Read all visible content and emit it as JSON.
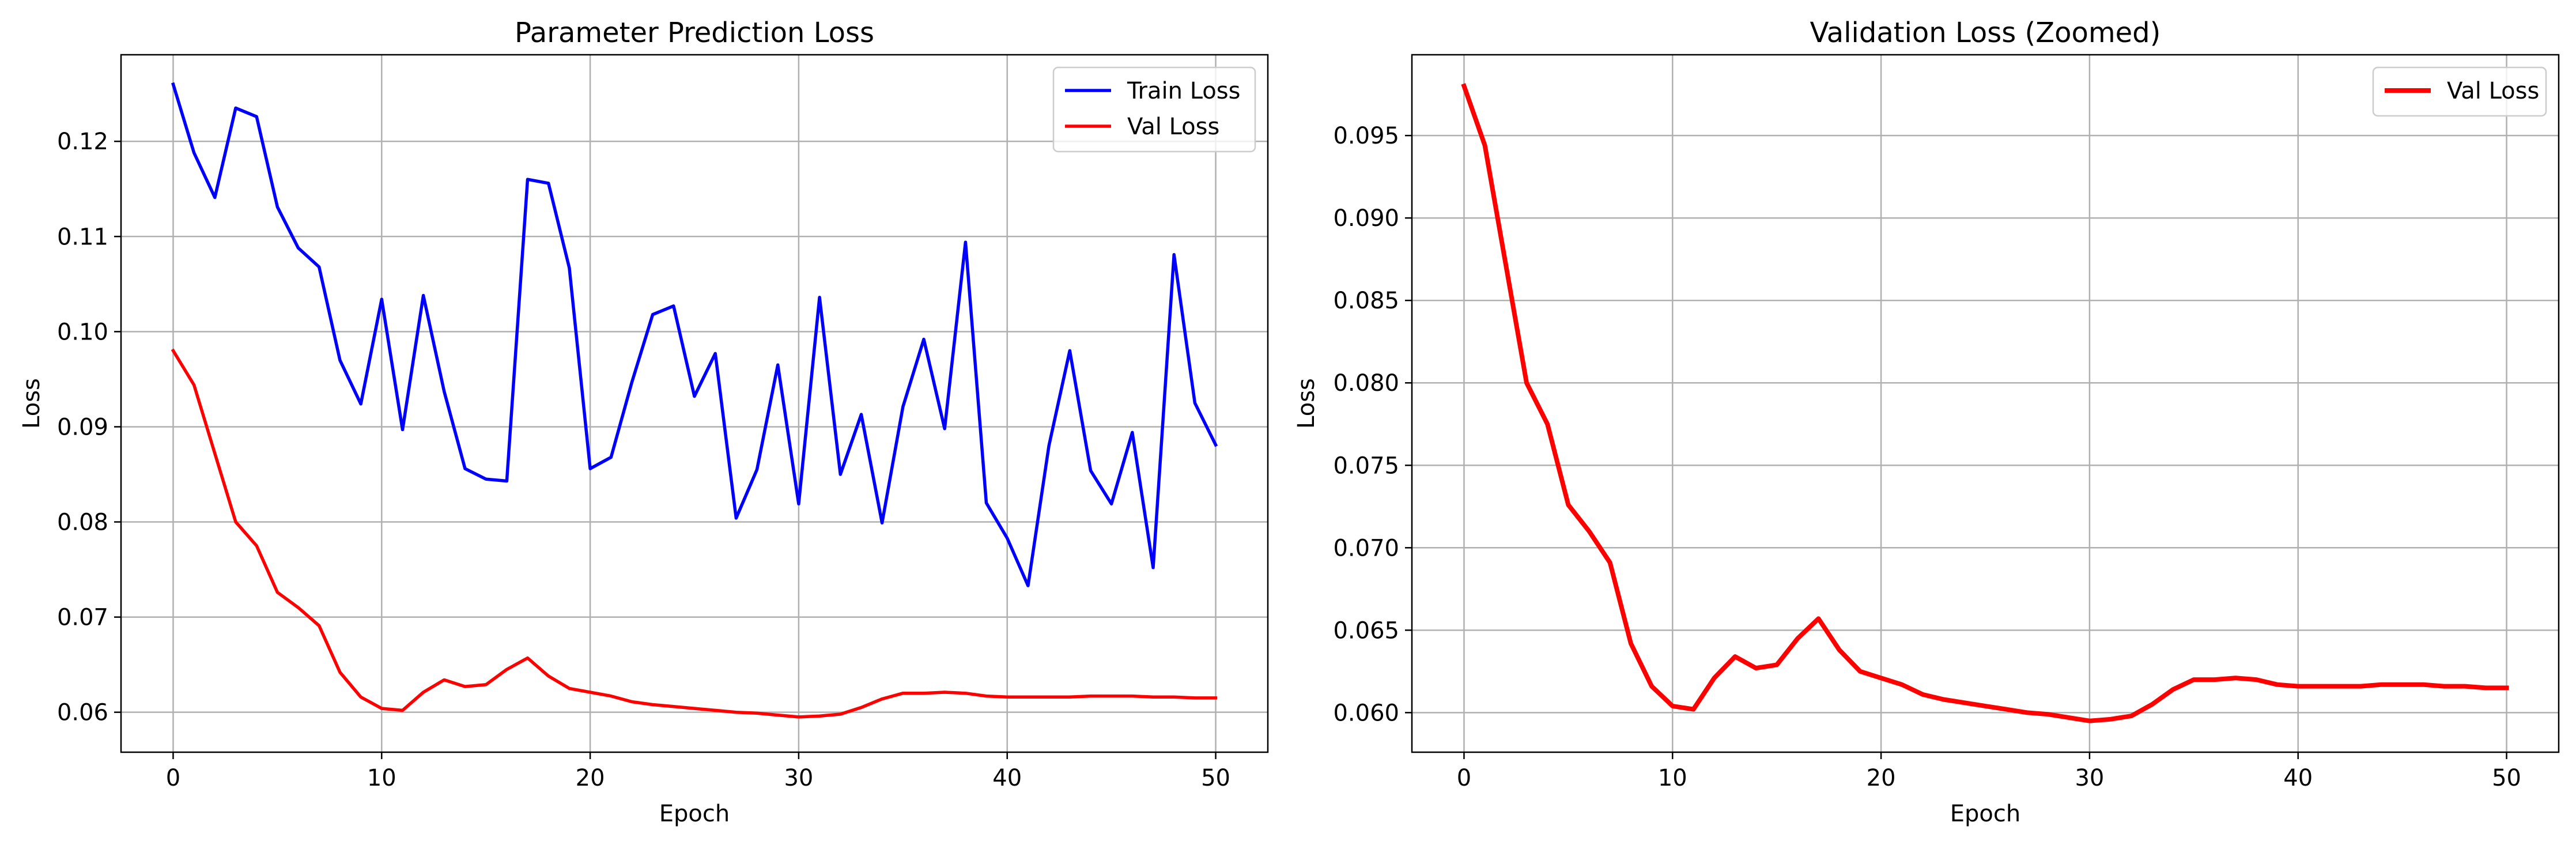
{
  "chart_data": [
    {
      "type": "line",
      "title": "Parameter Prediction Loss",
      "xlabel": "Epoch",
      "ylabel": "Loss",
      "xlim": [
        -2.5,
        52.5
      ],
      "ylim": [
        0.0558,
        0.1291
      ],
      "xticks": [
        0,
        10,
        20,
        30,
        40,
        50
      ],
      "xtick_labels": [
        "0",
        "10",
        "20",
        "30",
        "40",
        "50"
      ],
      "yticks": [
        0.06,
        0.07,
        0.08,
        0.09,
        0.1,
        0.11,
        0.12
      ],
      "ytick_labels": [
        "0.06",
        "0.07",
        "0.08",
        "0.09",
        "0.10",
        "0.11",
        "0.12"
      ],
      "grid": true,
      "legend_position": "top-right",
      "x": [
        0,
        1,
        2,
        3,
        4,
        5,
        6,
        7,
        8,
        9,
        10,
        11,
        12,
        13,
        14,
        15,
        16,
        17,
        18,
        19,
        20,
        21,
        22,
        23,
        24,
        25,
        26,
        27,
        28,
        29,
        30,
        31,
        32,
        33,
        34,
        35,
        36,
        37,
        38,
        39,
        40,
        41,
        42,
        43,
        44,
        45,
        46,
        47,
        48,
        49,
        50
      ],
      "series": [
        {
          "name": "Train Loss",
          "color": "#0000ff",
          "values": [
            0.126,
            0.1188,
            0.1141,
            0.1235,
            0.1226,
            0.1131,
            0.1088,
            0.1068,
            0.097,
            0.0924,
            0.1034,
            0.0897,
            0.1038,
            0.0937,
            0.0856,
            0.0845,
            0.0843,
            0.116,
            0.1156,
            0.1067,
            0.0856,
            0.0868,
            0.0947,
            0.1018,
            0.1027,
            0.0932,
            0.0977,
            0.0804,
            0.0855,
            0.0965,
            0.0819,
            0.1036,
            0.085,
            0.0913,
            0.0799,
            0.0921,
            0.0992,
            0.0898,
            0.1094,
            0.082,
            0.0783,
            0.0733,
            0.088,
            0.098,
            0.0854,
            0.0819,
            0.0894,
            0.0752,
            0.1081,
            0.0925,
            0.0881
          ]
        },
        {
          "name": "Val Loss",
          "color": "#ff0000",
          "values": [
            0.098,
            0.0944,
            0.0872,
            0.08,
            0.0775,
            0.0726,
            0.071,
            0.0691,
            0.0642,
            0.0616,
            0.0604,
            0.0602,
            0.0621,
            0.0634,
            0.0627,
            0.0629,
            0.0645,
            0.0657,
            0.0638,
            0.0625,
            0.0621,
            0.0617,
            0.0611,
            0.0608,
            0.0606,
            0.0604,
            0.0602,
            0.06,
            0.0599,
            0.0597,
            0.0595,
            0.0596,
            0.0598,
            0.0605,
            0.0614,
            0.062,
            0.062,
            0.0621,
            0.062,
            0.0617,
            0.0616,
            0.0616,
            0.0616,
            0.0616,
            0.0617,
            0.0617,
            0.0617,
            0.0616,
            0.0616,
            0.0615,
            0.0615
          ]
        }
      ]
    },
    {
      "type": "line",
      "title": "Validation Loss (Zoomed)",
      "xlabel": "Epoch",
      "ylabel": "Loss",
      "xlim": [
        -2.5,
        52.5
      ],
      "ylim": [
        0.0576,
        0.0999
      ],
      "xticks": [
        0,
        10,
        20,
        30,
        40,
        50
      ],
      "xtick_labels": [
        "0",
        "10",
        "20",
        "30",
        "40",
        "50"
      ],
      "yticks": [
        0.06,
        0.065,
        0.07,
        0.075,
        0.08,
        0.085,
        0.09,
        0.095
      ],
      "ytick_labels": [
        "0.060",
        "0.065",
        "0.070",
        "0.075",
        "0.080",
        "0.085",
        "0.090",
        "0.095"
      ],
      "grid": true,
      "legend_position": "top-right",
      "x": [
        0,
        1,
        2,
        3,
        4,
        5,
        6,
        7,
        8,
        9,
        10,
        11,
        12,
        13,
        14,
        15,
        16,
        17,
        18,
        19,
        20,
        21,
        22,
        23,
        24,
        25,
        26,
        27,
        28,
        29,
        30,
        31,
        32,
        33,
        34,
        35,
        36,
        37,
        38,
        39,
        40,
        41,
        42,
        43,
        44,
        45,
        46,
        47,
        48,
        49,
        50
      ],
      "series": [
        {
          "name": "Val Loss",
          "color": "#ff0000",
          "values": [
            0.098,
            0.0944,
            0.0872,
            0.08,
            0.0775,
            0.0726,
            0.071,
            0.0691,
            0.0642,
            0.0616,
            0.0604,
            0.0602,
            0.0621,
            0.0634,
            0.0627,
            0.0629,
            0.0645,
            0.0657,
            0.0638,
            0.0625,
            0.0621,
            0.0617,
            0.0611,
            0.0608,
            0.0606,
            0.0604,
            0.0602,
            0.06,
            0.0599,
            0.0597,
            0.0595,
            0.0596,
            0.0598,
            0.0605,
            0.0614,
            0.062,
            0.062,
            0.0621,
            0.062,
            0.0617,
            0.0616,
            0.0616,
            0.0616,
            0.0616,
            0.0617,
            0.0617,
            0.0617,
            0.0616,
            0.0616,
            0.0615,
            0.0615
          ]
        }
      ]
    }
  ]
}
